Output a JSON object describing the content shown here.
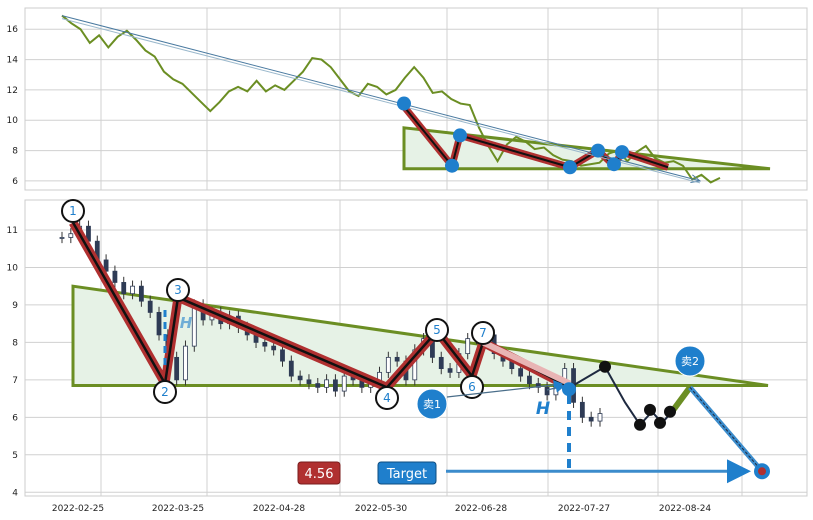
{
  "chart_data": [
    {
      "type": "line",
      "panel": "top",
      "ylim": [
        5.4,
        17.4
      ],
      "yticks": [
        6,
        8,
        10,
        12,
        14,
        16
      ],
      "series": [
        {
          "values": [
            16.9,
            16.4,
            16.0,
            15.1,
            15.6,
            14.8,
            15.5,
            15.9,
            15.3,
            14.6,
            14.2,
            13.2,
            12.7,
            12.4,
            11.8,
            11.2,
            10.6,
            11.2,
            11.9,
            12.2,
            11.9,
            12.6,
            11.9,
            12.3,
            12.0,
            12.6,
            13.2,
            14.1,
            14.0,
            13.5,
            12.7,
            11.9,
            11.6,
            12.4,
            12.2,
            11.7,
            12.0,
            12.8,
            13.5,
            12.8,
            11.8,
            11.9,
            11.4,
            11.1,
            11.0,
            9.5,
            8.3,
            7.3,
            8.4,
            8.9,
            8.6,
            8.1,
            8.2,
            7.7,
            7.4,
            7.3,
            7.0,
            7.1,
            7.2,
            7.8,
            8.0,
            7.3,
            7.9,
            8.3,
            7.5,
            7.2,
            7.3,
            7.0,
            6.1,
            6.4,
            5.9,
            6.2
          ]
        }
      ],
      "triangle": {
        "top_y": 9.5,
        "bottom_y": 6.8
      },
      "arrow": {
        "from_y": 16.9,
        "to_y": 6.0
      }
    },
    {
      "type": "candlestick",
      "panel": "bottom",
      "ylim": [
        3.9,
        11.8
      ],
      "yticks": [
        4,
        5,
        6,
        7,
        8,
        9,
        10,
        11
      ],
      "x_ticks": [
        "2022-02-25",
        "2022-03-25",
        "2022-04-28",
        "2022-05-30",
        "2022-06-28",
        "2022-07-27",
        "2022-08-24"
      ],
      "close": [
        10.8,
        10.9,
        11.1,
        10.7,
        10.2,
        9.9,
        9.6,
        9.3,
        9.5,
        9.1,
        8.8,
        8.2,
        7.6,
        7.0,
        7.9,
        9.0,
        8.6,
        8.8,
        8.5,
        8.7,
        8.4,
        8.2,
        8.0,
        7.9,
        7.8,
        7.5,
        7.1,
        7.0,
        6.9,
        6.8,
        7.0,
        6.7,
        7.1,
        7.0,
        6.8,
        6.9,
        7.2,
        7.6,
        7.5,
        7.0,
        7.8,
        8.1,
        7.6,
        7.3,
        7.2,
        7.7,
        8.1,
        8.3,
        8.2,
        7.7,
        7.5,
        7.3,
        7.1,
        6.9,
        6.8,
        6.6,
        7.0,
        7.3,
        6.4,
        6.0,
        5.9,
        6.1
      ],
      "pivots": [
        {
          "label": "1",
          "y": 11.2
        },
        {
          "label": "2",
          "y": 6.9
        },
        {
          "label": "3",
          "y": 9.2
        },
        {
          "label": "4",
          "y": 6.8
        },
        {
          "label": "5",
          "y": 8.3
        },
        {
          "label": "6",
          "y": 7.1
        },
        {
          "label": "7",
          "y": 8.0
        }
      ],
      "triangle": {
        "top_y": 9.5,
        "bottom_y": 6.85
      },
      "sell1_label": "卖1",
      "sell2_label": "卖2",
      "h_label": "H",
      "price_badge": "4.56",
      "target_label": "Target",
      "target_y": 4.56
    }
  ],
  "colors": {
    "grid": "#d0d0d0",
    "price_line": "#6b8e23",
    "triangle": "#6b8e23",
    "triangle_fill": "#e6f2e6",
    "zigzag": "#b03030",
    "blue": "#1f7fcc",
    "badge_red": "#b03030"
  }
}
